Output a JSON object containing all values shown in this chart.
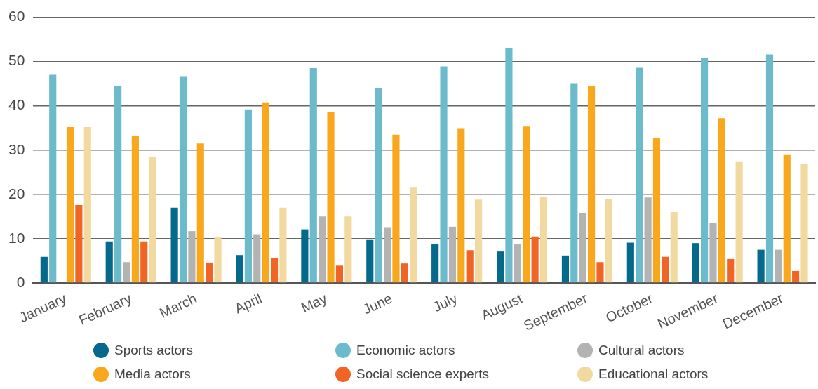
{
  "chart_data": {
    "type": "bar",
    "categories": [
      "January",
      "February",
      "March",
      "April",
      "May",
      "June",
      "July",
      "August",
      "September",
      "October",
      "November",
      "December"
    ],
    "series": [
      {
        "name": "Sports actors",
        "color": "#04698a",
        "values": [
          5.9,
          9.4,
          17.0,
          6.3,
          12.1,
          9.7,
          8.7,
          7.1,
          6.2,
          9.1,
          9.0,
          7.5
        ]
      },
      {
        "name": "Economic actors",
        "color": "#6bbbcd",
        "values": [
          47.0,
          44.4,
          46.7,
          39.2,
          48.5,
          43.9,
          48.9,
          53.0,
          45.1,
          48.6,
          50.8,
          51.6
        ]
      },
      {
        "name": "Cultural actors",
        "color": "#b3b3b4",
        "values": [
          null,
          4.7,
          11.7,
          11.0,
          15.0,
          12.6,
          12.7,
          8.7,
          15.8,
          19.3,
          13.6,
          7.5
        ]
      },
      {
        "name": "Media actors",
        "color": "#f9a81e",
        "values": [
          35.2,
          33.2,
          31.5,
          40.8,
          38.6,
          33.5,
          34.8,
          35.3,
          44.4,
          32.7,
          37.2,
          28.9
        ]
      },
      {
        "name": "Social science experts",
        "color": "#f06526",
        "values": [
          17.6,
          9.4,
          4.6,
          5.7,
          3.9,
          4.4,
          7.4,
          10.5,
          4.7,
          5.9,
          5.4,
          2.7
        ]
      },
      {
        "name": "Educational actors",
        "color": "#f2d99f",
        "values": [
          35.2,
          28.5,
          10.3,
          17.0,
          15.0,
          21.5,
          18.8,
          19.5,
          19.0,
          16.0,
          27.3,
          26.8
        ]
      }
    ],
    "ylim": [
      0,
      60
    ],
    "yticks": [
      0,
      10,
      20,
      30,
      40,
      50,
      60
    ],
    "grid": "y",
    "legend": "bottom"
  }
}
